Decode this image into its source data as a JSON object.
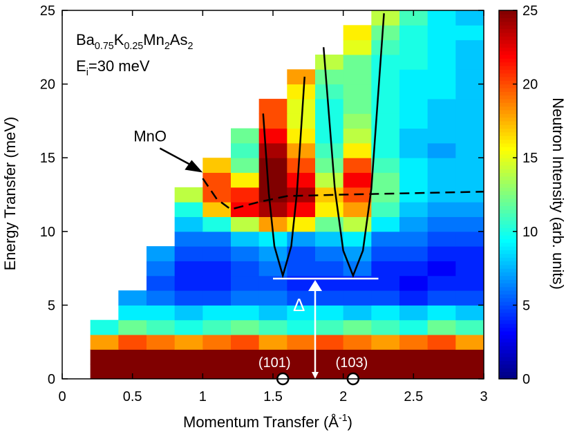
{
  "chart_data": {
    "type": "heatmap",
    "sample_label": [
      "Ba",
      "0.75",
      "K",
      "0.25",
      "Mn",
      "2",
      "As",
      "2"
    ],
    "energy_label": [
      "E",
      "i",
      "=30 meV"
    ],
    "xlabel": [
      "Momentum Transfer (Å",
      "-1",
      ")"
    ],
    "ylabel": "Energy Transfer (meV)",
    "xlim": [
      0,
      3
    ],
    "ylim": [
      0,
      25
    ],
    "xticks": [
      0,
      0.5,
      1,
      1.5,
      2,
      2.5,
      3
    ],
    "yticks": [
      0,
      5,
      10,
      15,
      20,
      25
    ],
    "colorbar": {
      "label": "Neutron Intensity (arb. units)",
      "lim": [
        0,
        25
      ],
      "ticks": [
        0,
        5,
        10,
        15,
        20,
        25
      ],
      "colormap": "jet"
    },
    "x": [
      0.1,
      0.3,
      0.5,
      0.7,
      0.9,
      1.1,
      1.3,
      1.5,
      1.7,
      1.9,
      2.1,
      2.3,
      2.5,
      2.7,
      2.9
    ],
    "y": [
      0.5,
      1.5,
      2.5,
      3.5,
      4.5,
      5.5,
      6.5,
      7.5,
      8.5,
      9.5,
      10.5,
      11.5,
      12.5,
      13.5,
      14.5,
      15.5,
      16.5,
      17.5,
      18.5,
      19.5,
      20.5,
      21.5,
      22.5,
      23.5,
      24.5
    ],
    "z": [
      [
        null,
        25,
        25,
        25,
        25,
        25,
        25,
        25,
        25,
        25,
        25,
        25,
        25,
        25,
        25
      ],
      [
        null,
        25,
        25,
        25,
        25,
        25,
        25,
        25,
        25,
        25,
        25,
        25,
        25,
        25,
        25
      ],
      [
        null,
        18,
        20,
        19,
        18,
        19,
        20,
        18,
        19,
        20,
        19,
        18,
        19,
        20,
        18
      ],
      [
        null,
        10,
        12,
        11,
        10,
        11,
        12,
        11,
        10,
        11,
        12,
        11,
        10,
        12,
        11
      ],
      [
        null,
        null,
        9,
        9,
        8,
        9,
        9,
        8,
        9,
        9,
        8,
        9,
        8,
        9,
        8
      ],
      [
        null,
        null,
        7,
        6,
        5,
        5,
        6,
        6,
        5,
        5,
        5,
        5,
        4,
        5,
        5
      ],
      [
        null,
        null,
        null,
        5,
        4,
        4,
        5,
        5,
        4,
        4,
        4,
        4,
        3,
        4,
        4
      ],
      [
        null,
        null,
        null,
        6,
        4,
        4,
        5,
        6,
        5,
        5,
        6,
        4,
        4,
        3,
        4
      ],
      [
        null,
        null,
        null,
        7,
        5,
        5,
        6,
        7,
        5,
        6,
        7,
        5,
        5,
        4,
        4
      ],
      [
        null,
        null,
        null,
        null,
        6,
        6,
        8,
        9,
        7,
        8,
        9,
        6,
        6,
        5,
        5
      ],
      [
        null,
        null,
        null,
        null,
        8,
        10,
        14,
        18,
        16,
        12,
        14,
        9,
        7,
        6,
        6
      ],
      [
        null,
        null,
        null,
        null,
        10,
        17,
        22,
        24,
        22,
        16,
        18,
        11,
        8,
        7,
        7
      ],
      [
        null,
        null,
        null,
        null,
        14,
        20,
        21,
        25,
        24,
        17,
        20,
        12,
        9,
        8,
        8
      ],
      [
        null,
        null,
        null,
        null,
        null,
        20,
        16,
        25,
        22,
        14,
        22,
        12,
        9,
        8,
        8
      ],
      [
        null,
        null,
        null,
        null,
        null,
        17,
        12,
        25,
        20,
        12,
        20,
        11,
        9,
        8,
        8
      ],
      [
        null,
        null,
        null,
        null,
        null,
        null,
        11,
        24,
        18,
        11,
        16,
        10,
        8,
        7,
        8
      ],
      [
        null,
        null,
        null,
        null,
        null,
        null,
        12,
        22,
        16,
        10,
        14,
        10,
        8,
        8,
        8
      ],
      [
        null,
        null,
        null,
        null,
        null,
        null,
        null,
        20,
        15,
        10,
        13,
        10,
        9,
        8,
        8
      ],
      [
        null,
        null,
        null,
        null,
        null,
        null,
        null,
        20,
        15,
        10,
        12,
        10,
        9,
        8,
        8
      ],
      [
        null,
        null,
        null,
        null,
        null,
        null,
        null,
        null,
        16,
        11,
        12,
        10,
        9,
        9,
        8
      ],
      [
        null,
        null,
        null,
        null,
        null,
        null,
        null,
        null,
        18,
        12,
        12,
        10,
        9,
        9,
        8
      ],
      [
        null,
        null,
        null,
        null,
        null,
        null,
        null,
        null,
        null,
        14,
        12,
        10,
        10,
        9,
        8
      ],
      [
        null,
        null,
        null,
        null,
        null,
        null,
        null,
        null,
        null,
        null,
        15,
        11,
        10,
        9,
        8
      ],
      [
        null,
        null,
        null,
        null,
        null,
        null,
        null,
        null,
        null,
        null,
        16,
        12,
        10,
        9,
        9
      ],
      [
        null,
        null,
        null,
        null,
        null,
        null,
        null,
        null,
        null,
        null,
        null,
        14,
        11,
        9,
        8
      ]
    ],
    "curves": [
      {
        "x": [
          1.43,
          1.47,
          1.51,
          1.57,
          1.63,
          1.67,
          1.725
        ],
        "y": [
          18,
          12.6,
          9,
          7,
          9,
          12.6,
          20.5
        ],
        "color": "#000000",
        "dashed": false
      },
      {
        "x": [
          1.86,
          1.94,
          2.0,
          2.07,
          2.14,
          2.2,
          2.29
        ],
        "y": [
          22.5,
          12.9,
          8.7,
          7,
          8.7,
          12.9,
          24.8
        ],
        "color": "#000000",
        "dashed": false
      },
      {
        "x": [
          1.0,
          1.1,
          1.2,
          1.4,
          1.6,
          2.0,
          2.5,
          3.0
        ],
        "y": [
          13.6,
          12.2,
          11.5,
          12,
          12.4,
          12.5,
          12.6,
          12.7
        ],
        "color": "#000000",
        "dashed": true
      }
    ],
    "gap": {
      "label": "Δ",
      "energy": 6.8,
      "x": [
        1.5,
        2.25
      ],
      "arrow_x": 1.8
    },
    "peaks": [
      {
        "label": "(101)",
        "x": 1.57
      },
      {
        "label": "(103)",
        "x": 2.07
      }
    ],
    "annotation": {
      "label": "MnO",
      "x": 1.0,
      "y": 14
    }
  }
}
